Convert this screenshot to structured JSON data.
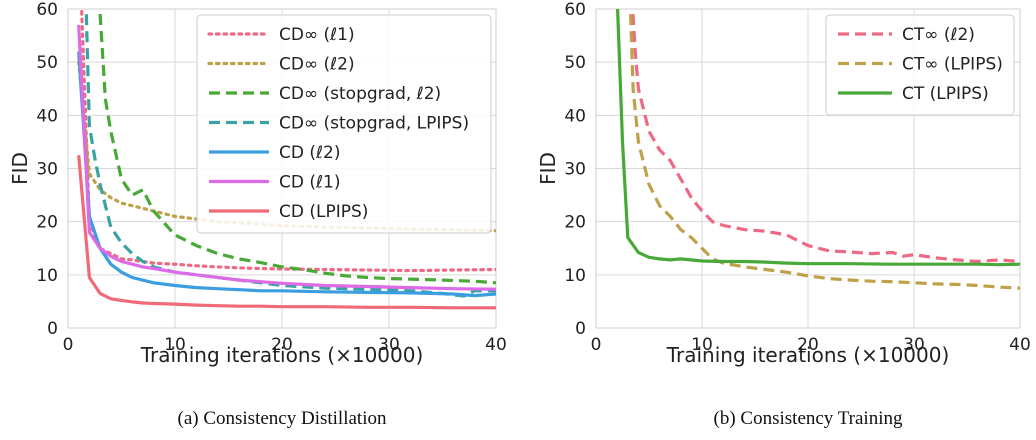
{
  "chart_data": [
    {
      "type": "line",
      "caption": "(a) Consistency Distillation",
      "xlabel": "Training iterations (×10000)",
      "ylabel": "FID",
      "xlim": [
        0,
        40
      ],
      "ylim": [
        0,
        60
      ],
      "xticks": [
        "0",
        "10",
        "20",
        "30",
        "40"
      ],
      "yticks": [
        "0",
        "10",
        "20",
        "30",
        "40",
        "50",
        "60"
      ],
      "grid": true,
      "legend_position": "top-right",
      "series": [
        {
          "name": "CD∞ (ℓ1)",
          "color": "#ee6a84",
          "style": "dotted",
          "points": [
            [
              1,
              75
            ],
            [
              2,
              20
            ],
            [
              3,
              15
            ],
            [
              4,
              14
            ],
            [
              5,
              13
            ],
            [
              6,
              12.8
            ],
            [
              7,
              12.5
            ],
            [
              8,
              12.2
            ],
            [
              10,
              12
            ],
            [
              12,
              11.7
            ],
            [
              14,
              11.5
            ],
            [
              16,
              11.3
            ],
            [
              18,
              11.2
            ],
            [
              20,
              11.1
            ],
            [
              24,
              11
            ],
            [
              28,
              10.9
            ],
            [
              32,
              10.8
            ],
            [
              36,
              10.9
            ],
            [
              40,
              11
            ]
          ]
        },
        {
          "name": "CD∞ (ℓ2)",
          "color": "#bfa14a",
          "style": "dotted",
          "points": [
            [
              1,
              50
            ],
            [
              2,
              29
            ],
            [
              3,
              26
            ],
            [
              4,
              24.5
            ],
            [
              5,
              23.5
            ],
            [
              6,
              23
            ],
            [
              8,
              22
            ],
            [
              10,
              21
            ],
            [
              12,
              20.5
            ],
            [
              14,
              20
            ],
            [
              16,
              19.8
            ],
            [
              18,
              19.5
            ],
            [
              20,
              19.2
            ],
            [
              24,
              19
            ],
            [
              28,
              18.8
            ],
            [
              32,
              18.6
            ],
            [
              36,
              18.5
            ],
            [
              40,
              18.3
            ]
          ]
        },
        {
          "name": "CD∞ (stopgrad, ℓ2)",
          "color": "#48a838",
          "style": "dashed",
          "points": [
            [
              2.5,
              75
            ],
            [
              3.5,
              43
            ],
            [
              4,
              37
            ],
            [
              5,
              28
            ],
            [
              6,
              25
            ],
            [
              7,
              26
            ],
            [
              8,
              22
            ],
            [
              10,
              17.5
            ],
            [
              12,
              15.5
            ],
            [
              14,
              14
            ],
            [
              16,
              13
            ],
            [
              18,
              12.3
            ],
            [
              20,
              11.5
            ],
            [
              22,
              11
            ],
            [
              24,
              10.3
            ],
            [
              26,
              9.8
            ],
            [
              28,
              9.5
            ],
            [
              30,
              9.3
            ],
            [
              32,
              9.2
            ],
            [
              35,
              9
            ],
            [
              38,
              8.8
            ],
            [
              40,
              8.5
            ]
          ]
        },
        {
          "name": "CD∞ (stopgrad, LPIPS)",
          "color": "#39a3a3",
          "style": "dashed",
          "points": [
            [
              1.5,
              75
            ],
            [
              2,
              38
            ],
            [
              2.5,
              32
            ],
            [
              3,
              27
            ],
            [
              4,
              19
            ],
            [
              5,
              16
            ],
            [
              6,
              14
            ],
            [
              7,
              12.5
            ],
            [
              8,
              11.5
            ],
            [
              10,
              10.5
            ],
            [
              12,
              10
            ],
            [
              14,
              9.5
            ],
            [
              16,
              9
            ],
            [
              18,
              8.5
            ],
            [
              20,
              8
            ],
            [
              24,
              7.5
            ],
            [
              28,
              7.3
            ],
            [
              32,
              7
            ],
            [
              35,
              6.5
            ],
            [
              37,
              6
            ],
            [
              38,
              7
            ],
            [
              40,
              7
            ]
          ]
        },
        {
          "name": "CD (ℓ2)",
          "color": "#3a9ee0",
          "style": "solid",
          "points": [
            [
              1,
              52
            ],
            [
              2,
              21
            ],
            [
              3,
              15
            ],
            [
              4,
              12
            ],
            [
              5,
              10.5
            ],
            [
              6,
              9.5
            ],
            [
              8,
              8.5
            ],
            [
              10,
              8
            ],
            [
              12,
              7.6
            ],
            [
              14,
              7.4
            ],
            [
              16,
              7.2
            ],
            [
              18,
              7
            ],
            [
              20,
              7
            ],
            [
              24,
              6.8
            ],
            [
              28,
              6.7
            ],
            [
              32,
              6.6
            ],
            [
              36,
              6.4
            ],
            [
              38,
              6.1
            ],
            [
              40,
              6.4
            ]
          ]
        },
        {
          "name": "CD (ℓ1)",
          "color": "#dd6ae6",
          "style": "solid",
          "points": [
            [
              1,
              57
            ],
            [
              2,
              18
            ],
            [
              3,
              15
            ],
            [
              4,
              13.5
            ],
            [
              5,
              12.5
            ],
            [
              6,
              12
            ],
            [
              7,
              11.5
            ],
            [
              8,
              11.2
            ],
            [
              10,
              10.5
            ],
            [
              12,
              10
            ],
            [
              14,
              9.5
            ],
            [
              16,
              9
            ],
            [
              18,
              8.7
            ],
            [
              20,
              8.4
            ],
            [
              24,
              8
            ],
            [
              28,
              7.8
            ],
            [
              32,
              7.6
            ],
            [
              36,
              7.4
            ],
            [
              40,
              7.3
            ]
          ]
        },
        {
          "name": "CD (LPIPS)",
          "color": "#ef6b78",
          "style": "solid",
          "points": [
            [
              1,
              32.5
            ],
            [
              2,
              9.5
            ],
            [
              3,
              6.5
            ],
            [
              4,
              5.5
            ],
            [
              5,
              5.2
            ],
            [
              6,
              4.9
            ],
            [
              7,
              4.7
            ],
            [
              8,
              4.6
            ],
            [
              10,
              4.5
            ],
            [
              12,
              4.3
            ],
            [
              14,
              4.2
            ],
            [
              16,
              4.1
            ],
            [
              18,
              4.1
            ],
            [
              20,
              4
            ],
            [
              24,
              4
            ],
            [
              28,
              3.9
            ],
            [
              32,
              3.9
            ],
            [
              36,
              3.8
            ],
            [
              40,
              3.8
            ]
          ]
        }
      ]
    },
    {
      "type": "line",
      "caption": "(b) Consistency Training",
      "xlabel": "Training iterations (×10000)",
      "ylabel": "FID",
      "xlim": [
        0,
        40
      ],
      "ylim": [
        0,
        60
      ],
      "xticks": [
        "0",
        "10",
        "20",
        "30",
        "40"
      ],
      "yticks": [
        "0",
        "10",
        "20",
        "30",
        "40",
        "50",
        "60"
      ],
      "grid": true,
      "legend_position": "top-right",
      "series": [
        {
          "name": "CT∞ (ℓ2)",
          "color": "#ee6a84",
          "style": "dashed",
          "points": [
            [
              3,
              75
            ],
            [
              3.7,
              52
            ],
            [
              4,
              45
            ],
            [
              5,
              37
            ],
            [
              6,
              33.5
            ],
            [
              7,
              31.5
            ],
            [
              8,
              28
            ],
            [
              9,
              24.5
            ],
            [
              10,
              22
            ],
            [
              11,
              20
            ],
            [
              12,
              19.3
            ],
            [
              14,
              18.5
            ],
            [
              16,
              18.2
            ],
            [
              18,
              17.5
            ],
            [
              20,
              15.5
            ],
            [
              22,
              14.5
            ],
            [
              24,
              14.3
            ],
            [
              26,
              14
            ],
            [
              28,
              14.2
            ],
            [
              29,
              13.5
            ],
            [
              30,
              13.8
            ],
            [
              32,
              13.2
            ],
            [
              34,
              12.8
            ],
            [
              36,
              12.5
            ],
            [
              38,
              12.8
            ],
            [
              40,
              12.5
            ]
          ]
        },
        {
          "name": "CT∞ (LPIPS)",
          "color": "#bfa14a",
          "style": "dashed",
          "points": [
            [
              3,
              75
            ],
            [
              3.5,
              45
            ],
            [
              4,
              35
            ],
            [
              5,
              27
            ],
            [
              6,
              23
            ],
            [
              7,
              21
            ],
            [
              8,
              18.5
            ],
            [
              9,
              17
            ],
            [
              10,
              15
            ],
            [
              11,
              13
            ],
            [
              12,
              12.2
            ],
            [
              14,
              11.5
            ],
            [
              16,
              11
            ],
            [
              18,
              10.5
            ],
            [
              20,
              9.8
            ],
            [
              22,
              9.3
            ],
            [
              24,
              9
            ],
            [
              26,
              8.8
            ],
            [
              28,
              8.7
            ],
            [
              30,
              8.5
            ],
            [
              32,
              8.3
            ],
            [
              34,
              8.2
            ],
            [
              36,
              8
            ],
            [
              38,
              7.7
            ],
            [
              40,
              7.5
            ]
          ]
        },
        {
          "name": "CT (LPIPS)",
          "color": "#48a838",
          "style": "solid",
          "points": [
            [
              2,
              62
            ],
            [
              2.5,
              35
            ],
            [
              3,
              17
            ],
            [
              4,
              14.2
            ],
            [
              5,
              13.3
            ],
            [
              6,
              13
            ],
            [
              7,
              12.8
            ],
            [
              8,
              13
            ],
            [
              10,
              12.6
            ],
            [
              12,
              12.5
            ],
            [
              14,
              12.5
            ],
            [
              16,
              12.4
            ],
            [
              18,
              12.2
            ],
            [
              20,
              12.1
            ],
            [
              24,
              12.1
            ],
            [
              28,
              12
            ],
            [
              32,
              12
            ],
            [
              36,
              12
            ],
            [
              38,
              11.9
            ],
            [
              40,
              12
            ]
          ]
        }
      ]
    }
  ]
}
